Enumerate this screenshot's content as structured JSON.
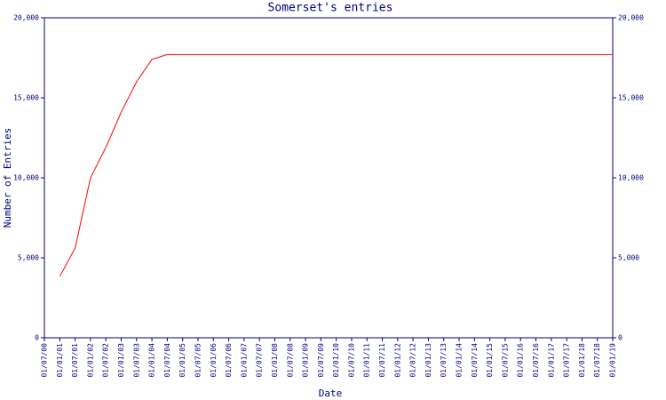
{
  "chart_data": {
    "type": "line",
    "title": "Somerset's entries",
    "x_label": "Date",
    "y_label": "Number of Entries",
    "categories": [
      "01/07/00",
      "01/01/01",
      "01/07/01",
      "01/01/02",
      "01/07/02",
      "01/01/03",
      "01/07/03",
      "01/01/04",
      "01/07/04",
      "01/01/05",
      "01/07/05",
      "01/01/06",
      "01/07/06",
      "01/01/07",
      "01/07/07",
      "01/01/08",
      "01/07/08",
      "01/01/09",
      "01/07/09",
      "01/01/10",
      "01/07/10",
      "01/01/11",
      "01/07/11",
      "01/01/12",
      "01/07/12",
      "01/01/13",
      "01/07/13",
      "01/01/14",
      "01/07/14",
      "01/01/15",
      "01/07/15",
      "01/01/16",
      "01/07/16",
      "01/01/17",
      "01/07/17",
      "01/01/18",
      "01/07/18",
      "01/01/19"
    ],
    "values": [
      null,
      3830,
      5600,
      10000,
      11900,
      14100,
      16000,
      17400,
      17700,
      17700,
      17700,
      17700,
      17700,
      17700,
      17700,
      17700,
      17700,
      17700,
      17700,
      17700,
      17700,
      17700,
      17700,
      17700,
      17700,
      17700,
      17700,
      17700,
      17700,
      17700,
      17700,
      17700,
      17700,
      17700,
      17700,
      17700,
      17700,
      17700
    ],
    "color": "#ff0000",
    "axis_color": "#000080",
    "ylim": [
      0,
      20000
    ],
    "yticks": [
      0,
      {
        "value": 5000,
        "label": "5,000"
      },
      {
        "value": 10000,
        "label": "10,000"
      },
      {
        "value": 15000,
        "label": "15,000"
      },
      {
        "value": 20000,
        "label": "20,000"
      }
    ],
    "right_axis": true,
    "grid": false
  }
}
